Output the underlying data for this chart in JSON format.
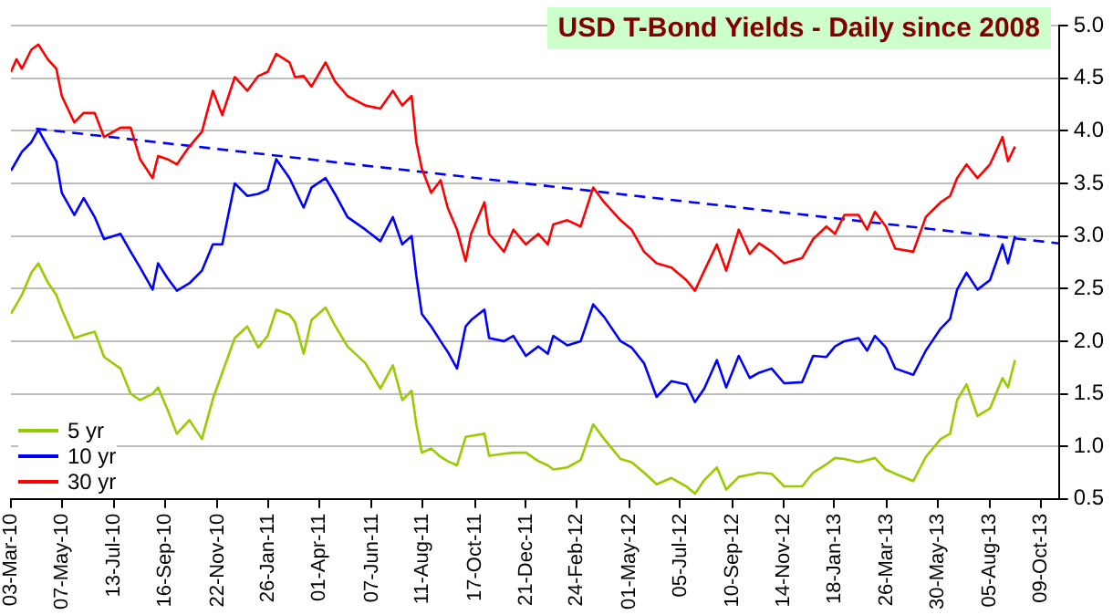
{
  "chart_data": {
    "type": "line",
    "title": "USD T-Bond Yields - Daily since 2008",
    "x": [
      "2010-03-03",
      "2010-03-10",
      "2010-03-17",
      "2010-03-29",
      "2010-04-07",
      "2010-04-19",
      "2010-04-30",
      "2010-05-07",
      "2010-05-23",
      "2010-06-04",
      "2010-06-18",
      "2010-06-30",
      "2010-07-21",
      "2010-08-03",
      "2010-08-15",
      "2010-08-31",
      "2010-09-07",
      "2010-09-19",
      "2010-10-01",
      "2010-10-17",
      "2010-11-02",
      "2010-11-16",
      "2010-11-28",
      "2010-12-14",
      "2010-12-30",
      "2011-01-13",
      "2011-01-25",
      "2011-02-05",
      "2011-02-22",
      "2011-03-01",
      "2011-03-12",
      "2011-03-22",
      "2011-04-09",
      "2011-04-21",
      "2011-05-07",
      "2011-05-30",
      "2011-06-18",
      "2011-07-04",
      "2011-07-16",
      "2011-07-28",
      "2011-08-03",
      "2011-08-10",
      "2011-08-22",
      "2011-09-03",
      "2011-09-12",
      "2011-09-24",
      "2011-10-05",
      "2011-10-12",
      "2011-10-29",
      "2011-11-04",
      "2011-11-23",
      "2011-12-05",
      "2011-12-21",
      "2012-01-06",
      "2012-01-18",
      "2012-01-25",
      "2012-02-12",
      "2012-02-29",
      "2012-03-16",
      "2012-03-30",
      "2012-04-20",
      "2012-05-04",
      "2012-05-20",
      "2012-06-05",
      "2012-06-24",
      "2012-07-13",
      "2012-07-24",
      "2012-08-05",
      "2012-08-21",
      "2012-09-02",
      "2012-09-18",
      "2012-10-02",
      "2012-10-14",
      "2012-10-30",
      "2012-11-15",
      "2012-12-08",
      "2012-12-22",
      "2013-01-08",
      "2013-01-19",
      "2013-01-31",
      "2013-02-18",
      "2013-03-01",
      "2013-03-11",
      "2013-03-25",
      "2013-04-06",
      "2013-04-29",
      "2013-05-15",
      "2013-06-03",
      "2013-06-15",
      "2013-06-24",
      "2013-07-06",
      "2013-07-20",
      "2013-08-05",
      "2013-08-21",
      "2013-08-28",
      "2013-09-06"
    ],
    "series": [
      {
        "name": "5 yr",
        "color": "#99cc00",
        "values": [
          2.26,
          2.35,
          2.44,
          2.65,
          2.74,
          2.56,
          2.44,
          2.3,
          2.03,
          2.06,
          2.09,
          1.85,
          1.74,
          1.5,
          1.44,
          1.5,
          1.56,
          1.35,
          1.12,
          1.25,
          1.07,
          1.45,
          1.7,
          2.03,
          2.14,
          1.94,
          2.05,
          2.3,
          2.25,
          2.18,
          1.88,
          2.2,
          2.32,
          2.15,
          1.95,
          1.79,
          1.55,
          1.77,
          1.44,
          1.53,
          1.21,
          0.94,
          0.98,
          0.9,
          0.86,
          0.82,
          1.09,
          1.1,
          1.12,
          0.91,
          0.93,
          0.94,
          0.94,
          0.86,
          0.82,
          0.78,
          0.8,
          0.87,
          1.21,
          1.07,
          0.88,
          0.85,
          0.75,
          0.64,
          0.7,
          0.62,
          0.55,
          0.68,
          0.8,
          0.59,
          0.71,
          0.73,
          0.75,
          0.74,
          0.62,
          0.62,
          0.75,
          0.83,
          0.89,
          0.88,
          0.85,
          0.87,
          0.89,
          0.78,
          0.74,
          0.67,
          0.9,
          1.07,
          1.12,
          1.44,
          1.59,
          1.29,
          1.36,
          1.65,
          1.56,
          1.82
        ]
      },
      {
        "name": "10 yr",
        "color": "#0000ff",
        "values": [
          3.62,
          3.71,
          3.8,
          3.89,
          4.01,
          3.85,
          3.71,
          3.41,
          3.2,
          3.36,
          3.18,
          2.97,
          3.02,
          2.85,
          2.7,
          2.49,
          2.74,
          2.6,
          2.48,
          2.55,
          2.67,
          2.92,
          2.92,
          3.5,
          3.38,
          3.4,
          3.44,
          3.73,
          3.55,
          3.44,
          3.27,
          3.46,
          3.55,
          3.4,
          3.18,
          3.06,
          2.95,
          3.18,
          2.92,
          3.0,
          2.62,
          2.26,
          2.14,
          2.0,
          1.9,
          1.74,
          2.14,
          2.2,
          2.3,
          2.03,
          2.0,
          2.05,
          1.86,
          1.95,
          1.88,
          2.05,
          1.96,
          2.0,
          2.35,
          2.23,
          2.0,
          1.94,
          1.79,
          1.47,
          1.62,
          1.59,
          1.42,
          1.55,
          1.82,
          1.56,
          1.86,
          1.65,
          1.7,
          1.74,
          1.6,
          1.61,
          1.86,
          1.85,
          1.95,
          2.0,
          2.03,
          1.91,
          2.05,
          1.94,
          1.74,
          1.68,
          1.91,
          2.12,
          2.21,
          2.49,
          2.65,
          2.49,
          2.58,
          2.92,
          2.74,
          3.0
        ]
      },
      {
        "name": "30 yr",
        "color": "#ff0000",
        "values": [
          4.56,
          4.68,
          4.59,
          4.77,
          4.82,
          4.68,
          4.59,
          4.33,
          4.08,
          4.17,
          4.17,
          3.94,
          4.03,
          4.03,
          3.73,
          3.55,
          3.76,
          3.73,
          3.68,
          3.85,
          3.99,
          4.38,
          4.15,
          4.51,
          4.38,
          4.52,
          4.56,
          4.73,
          4.65,
          4.51,
          4.52,
          4.42,
          4.65,
          4.47,
          4.33,
          4.24,
          4.21,
          4.38,
          4.24,
          4.33,
          3.89,
          3.64,
          3.41,
          3.53,
          3.27,
          3.06,
          2.76,
          3.02,
          3.32,
          3.02,
          2.85,
          3.06,
          2.92,
          3.02,
          2.92,
          3.11,
          3.15,
          3.09,
          3.46,
          3.32,
          3.15,
          3.06,
          2.85,
          2.74,
          2.7,
          2.58,
          2.48,
          2.67,
          2.92,
          2.67,
          3.06,
          2.83,
          2.93,
          2.85,
          2.74,
          2.79,
          2.97,
          3.09,
          3.02,
          3.2,
          3.2,
          3.06,
          3.23,
          3.09,
          2.88,
          2.85,
          3.18,
          3.32,
          3.38,
          3.55,
          3.68,
          3.55,
          3.68,
          3.94,
          3.71,
          3.85
        ]
      },
      {
        "color": "#0000ff",
        "line_style": "dashed",
        "x": [
          "2010-04-04",
          "2013-11-01"
        ],
        "values": [
          4.02,
          2.93
        ]
      }
    ],
    "xlim": [
      "2010-03-03",
      "2013-11-01"
    ],
    "xticks": [
      {
        "value": "2010-03-03",
        "label": "03-Mar-10"
      },
      {
        "value": "2010-05-07",
        "label": "07-May-10"
      },
      {
        "value": "2010-07-13",
        "label": "13-Jul-10"
      },
      {
        "value": "2010-09-16",
        "label": "16-Sep-10"
      },
      {
        "value": "2010-11-22",
        "label": "22-Nov-10"
      },
      {
        "value": "2011-01-26",
        "label": "26-Jan-11"
      },
      {
        "value": "2011-04-01",
        "label": "01-Apr-11"
      },
      {
        "value": "2011-06-07",
        "label": "07-Jun-11"
      },
      {
        "value": "2011-08-11",
        "label": "11-Aug-11"
      },
      {
        "value": "2011-10-17",
        "label": "17-Oct-11"
      },
      {
        "value": "2011-12-21",
        "label": "21-Dec-11"
      },
      {
        "value": "2012-02-24",
        "label": "24-Feb-12"
      },
      {
        "value": "2012-05-01",
        "label": "01-May-12"
      },
      {
        "value": "2012-07-05",
        "label": "05-Jul-12"
      },
      {
        "value": "2012-09-10",
        "label": "10-Sep-12"
      },
      {
        "value": "2012-11-14",
        "label": "14-Nov-12"
      },
      {
        "value": "2013-01-18",
        "label": "18-Jan-13"
      },
      {
        "value": "2013-03-26",
        "label": "26-Mar-13"
      },
      {
        "value": "2013-05-30",
        "label": "30-May-13"
      },
      {
        "value": "2013-08-05",
        "label": "05-Aug-13"
      },
      {
        "value": "2013-10-09",
        "label": "09-Oct-13"
      }
    ],
    "ylim": [
      0.5,
      5.0
    ],
    "yticks": [
      {
        "value": 0.5,
        "label": "0.5"
      },
      {
        "value": 1,
        "label": "1.0"
      },
      {
        "value": 1.5,
        "label": "1.5"
      },
      {
        "value": 2,
        "label": "2.0"
      },
      {
        "value": 2.5,
        "label": "2.5"
      },
      {
        "value": 3,
        "label": "3.0"
      },
      {
        "value": 3.5,
        "label": "3.5"
      },
      {
        "value": 4,
        "label": "4.0"
      },
      {
        "value": 4.5,
        "label": "4.5"
      },
      {
        "value": 5,
        "label": "5.0"
      }
    ],
    "grid": "y",
    "legend": "bottom left",
    "marker": "none"
  }
}
